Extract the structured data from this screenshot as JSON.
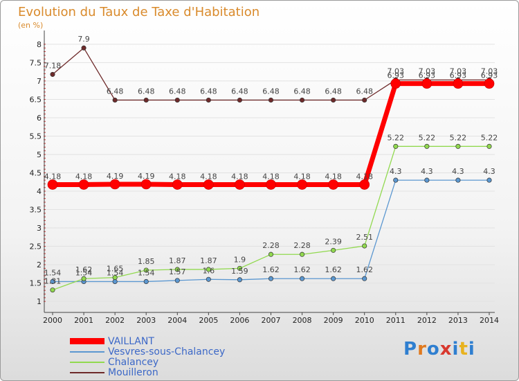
{
  "chart_data": {
    "type": "line",
    "title": "Evolution du Taux de Taxe d'Habitation",
    "subtitle": "(en %)",
    "xlabel": "",
    "ylabel": "",
    "ylim": [
      1,
      8
    ],
    "yticks": [
      "1",
      "1.5",
      "2",
      "2.5",
      "3",
      "3.5",
      "4",
      "4.5",
      "5",
      "5.5",
      "6",
      "6.5",
      "7",
      "7.5",
      "8"
    ],
    "categories": [
      "2000",
      "2001",
      "2002",
      "2003",
      "2004",
      "2005",
      "2006",
      "2007",
      "2008",
      "2009",
      "2010",
      "2011",
      "2012",
      "2013",
      "2014"
    ],
    "series": [
      {
        "name": "VAILLANT",
        "color": "#ff0000",
        "values": [
          4.18,
          4.18,
          4.19,
          4.19,
          4.18,
          4.18,
          4.18,
          4.18,
          4.18,
          4.18,
          4.18,
          6.93,
          6.93,
          6.93,
          6.93
        ]
      },
      {
        "name": "Vesvres-sous-Chalancey",
        "color": "#5b97d0",
        "values": [
          1.54,
          1.54,
          1.54,
          1.54,
          1.57,
          1.6,
          1.59,
          1.62,
          1.62,
          1.62,
          1.62,
          4.3,
          4.3,
          4.3,
          4.3
        ]
      },
      {
        "name": "Chalancey",
        "color": "#91d94f",
        "values": [
          1.31,
          1.62,
          1.65,
          1.85,
          1.87,
          1.87,
          1.9,
          2.28,
          2.28,
          2.39,
          2.51,
          5.22,
          5.22,
          5.22,
          5.22
        ]
      },
      {
        "name": "Mouilleron",
        "color": "#6e2a2a",
        "values": [
          7.18,
          7.9,
          6.48,
          6.48,
          6.48,
          6.48,
          6.48,
          6.48,
          6.48,
          6.48,
          6.48,
          7.03,
          7.03,
          7.03,
          7.03
        ]
      }
    ],
    "legend": "bottom-left"
  },
  "logo": {
    "text": "Proxiti"
  }
}
